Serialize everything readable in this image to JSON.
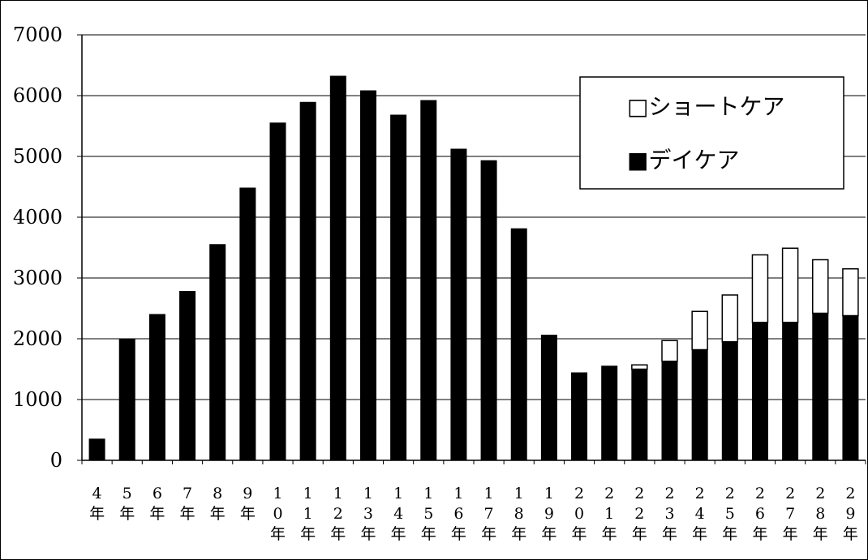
{
  "chart_data": {
    "type": "bar",
    "stacked": true,
    "ylim": [
      0,
      7000
    ],
    "yticks": [
      "0",
      "1000",
      "2000",
      "3000",
      "4000",
      "5000",
      "6000",
      "7000"
    ],
    "grid": true,
    "legend_position": "top-right",
    "categories": [
      [
        "4",
        "年"
      ],
      [
        "5",
        "年"
      ],
      [
        "6",
        "年"
      ],
      [
        "7",
        "年"
      ],
      [
        "8",
        "年"
      ],
      [
        "9",
        "年"
      ],
      [
        "1",
        "0",
        "年"
      ],
      [
        "1",
        "1",
        "年"
      ],
      [
        "1",
        "2",
        "年"
      ],
      [
        "1",
        "3",
        "年"
      ],
      [
        "1",
        "4",
        "年"
      ],
      [
        "1",
        "5",
        "年"
      ],
      [
        "1",
        "6",
        "年"
      ],
      [
        "1",
        "7",
        "年"
      ],
      [
        "1",
        "8",
        "年"
      ],
      [
        "1",
        "9",
        "年"
      ],
      [
        "2",
        "0",
        "年"
      ],
      [
        "2",
        "1",
        "年"
      ],
      [
        "2",
        "2",
        "年"
      ],
      [
        "2",
        "3",
        "年"
      ],
      [
        "2",
        "4",
        "年"
      ],
      [
        "2",
        "5",
        "年"
      ],
      [
        "2",
        "6",
        "年"
      ],
      [
        "2",
        "7",
        "年"
      ],
      [
        "2",
        "8",
        "年"
      ],
      [
        "2",
        "9",
        "年"
      ]
    ],
    "series": [
      {
        "name": "デイケア",
        "color": "#000000",
        "values": [
          350,
          2000,
          2400,
          2780,
          3550,
          4480,
          5550,
          5890,
          6320,
          6080,
          5680,
          5920,
          5120,
          4930,
          3810,
          2060,
          1440,
          1550,
          1500,
          1630,
          1820,
          1950,
          2270,
          2270,
          2420,
          2380
        ]
      },
      {
        "name": "ショートケア",
        "color": "#ffffff",
        "values": [
          0,
          0,
          0,
          0,
          0,
          0,
          0,
          0,
          0,
          0,
          0,
          0,
          0,
          0,
          0,
          0,
          0,
          0,
          70,
          340,
          630,
          770,
          1110,
          1220,
          880,
          770
        ]
      }
    ]
  },
  "legend": {
    "short_care_label": "□ショートケア",
    "day_care_label": "■デイケア"
  }
}
